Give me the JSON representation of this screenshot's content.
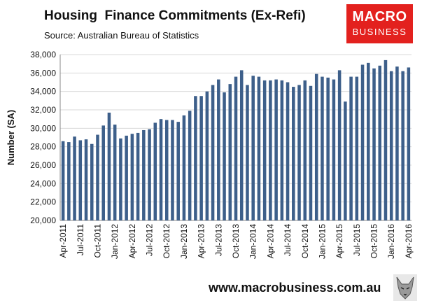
{
  "header": {
    "title": "Housing  Finance Commitments (Ex-Refi)",
    "source": "Source: Australian Bureau of Statistics"
  },
  "logo": {
    "line1": "MACRO",
    "line2": "BUSINESS",
    "color": "#e3211e"
  },
  "footer": {
    "url": "www.macrobusiness.com.au",
    "mascot": "wolf-icon"
  },
  "chart_data": {
    "type": "bar",
    "title": "Housing  Finance Commitments (Ex-Refi)",
    "subtitle": "Source: Australian Bureau of Statistics",
    "xlabel": "",
    "ylabel": "Number (SA)",
    "ylim": [
      20000,
      38000
    ],
    "yticks": [
      "20,000",
      "22,000",
      "24,000",
      "26,000",
      "28,000",
      "30,000",
      "32,000",
      "34,000",
      "36,000",
      "38,000"
    ],
    "ytick_values": [
      20000,
      22000,
      24000,
      26000,
      28000,
      30000,
      32000,
      34000,
      36000,
      38000
    ],
    "grid": true,
    "bar_color": "#3d5f8a",
    "categories": [
      "Apr-2011",
      "May-2011",
      "Jun-2011",
      "Jul-2011",
      "Aug-2011",
      "Sep-2011",
      "Oct-2011",
      "Nov-2011",
      "Dec-2011",
      "Jan-2012",
      "Feb-2012",
      "Mar-2012",
      "Apr-2012",
      "May-2012",
      "Jun-2012",
      "Jul-2012",
      "Aug-2012",
      "Sep-2012",
      "Oct-2012",
      "Nov-2012",
      "Dec-2012",
      "Jan-2013",
      "Feb-2013",
      "Mar-2013",
      "Apr-2013",
      "May-2013",
      "Jun-2013",
      "Jul-2013",
      "Aug-2013",
      "Sep-2013",
      "Oct-2013",
      "Nov-2013",
      "Dec-2013",
      "Jan-2014",
      "Feb-2014",
      "Mar-2014",
      "Apr-2014",
      "May-2014",
      "Jun-2014",
      "Jul-2014",
      "Aug-2014",
      "Sep-2014",
      "Oct-2014",
      "Nov-2014",
      "Dec-2014",
      "Jan-2015",
      "Feb-2015",
      "Mar-2015",
      "Apr-2015",
      "May-2015",
      "Jun-2015",
      "Jul-2015",
      "Aug-2015",
      "Sep-2015",
      "Oct-2015",
      "Nov-2015",
      "Dec-2015",
      "Jan-2016",
      "Feb-2016",
      "Mar-2016",
      "Apr-2016"
    ],
    "tick_labels": [
      "Apr-2011",
      "Jul-2011",
      "Oct-2011",
      "Jan-2012",
      "Apr-2012",
      "Jul-2012",
      "Oct-2012",
      "Jan-2013",
      "Apr-2013",
      "Jul-2013",
      "Oct-2013",
      "Jan-2014",
      "Apr-2014",
      "Jul-2014",
      "Oct-2014",
      "Jan-2015",
      "Apr-2015",
      "Jul-2015",
      "Oct-2015",
      "Jan-2016",
      "Apr-2016"
    ],
    "values": [
      28600,
      28500,
      29100,
      28700,
      28800,
      28300,
      29300,
      30300,
      31700,
      30400,
      28900,
      29200,
      29400,
      29500,
      29800,
      29900,
      30600,
      31000,
      30900,
      30900,
      30700,
      31400,
      31900,
      33500,
      33500,
      34000,
      34700,
      35300,
      33900,
      34800,
      35600,
      36300,
      34700,
      35700,
      35600,
      35200,
      35200,
      35300,
      35200,
      35000,
      34500,
      34700,
      35200,
      34600,
      35900,
      35600,
      35500,
      35300,
      36300,
      32900,
      35600,
      35600,
      36900,
      37100,
      36500,
      36800,
      37400,
      36200,
      36700,
      36200,
      36600
    ]
  }
}
